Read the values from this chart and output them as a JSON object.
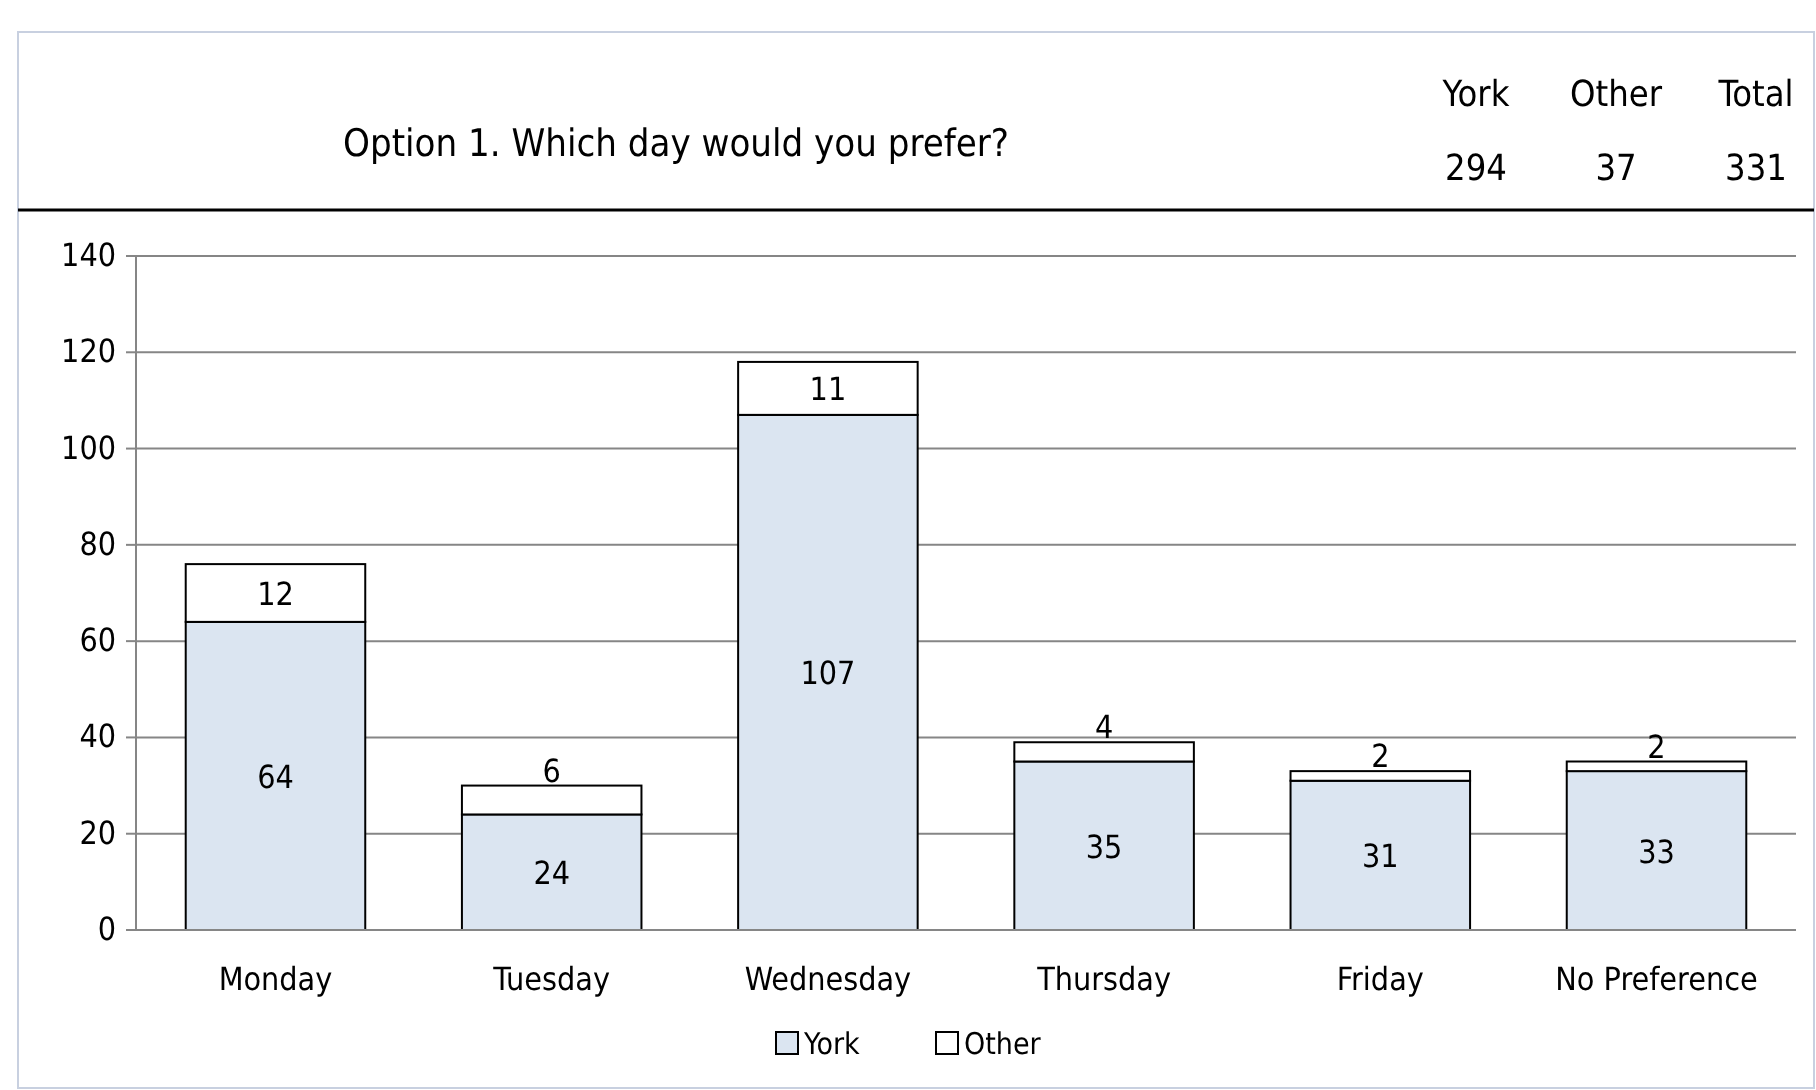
{
  "chart_data": {
    "type": "bar",
    "title": "Option 1. Which day would you prefer?",
    "annotations": [
      "York",
      "Other",
      "Total",
      "294",
      "37",
      "331"
    ],
    "categories": [
      "Monday",
      "Tuesday",
      "Wednesday",
      "Thursday",
      "Friday",
      "No Preference"
    ],
    "stacked": true,
    "series": [
      {
        "name": "York",
        "color": "#dbe5f1",
        "values": [
          64,
          24,
          107,
          35,
          31,
          33
        ]
      },
      {
        "name": "Other",
        "color": "#ffffff",
        "values": [
          12,
          6,
          11,
          4,
          2,
          2
        ]
      }
    ],
    "data_labels": true,
    "ylim": [
      0,
      140
    ],
    "yticks": [
      0,
      20,
      40,
      60,
      80,
      100,
      120,
      140
    ],
    "grid": "y",
    "legend": "bottom"
  }
}
